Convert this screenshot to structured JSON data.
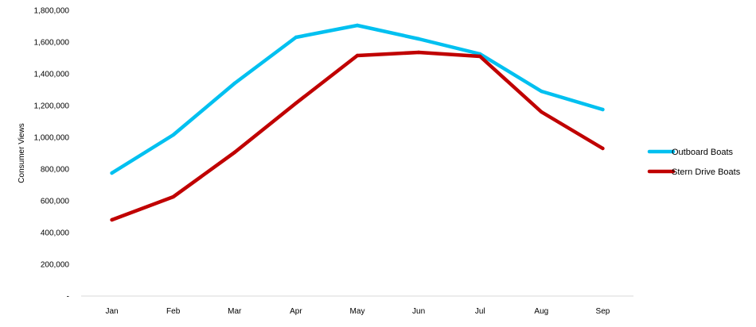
{
  "chart_data": {
    "type": "line",
    "title": "",
    "xlabel": "",
    "ylabel": "Consumer Views",
    "categories": [
      "Jan",
      "Feb",
      "Mar",
      "Apr",
      "May",
      "Jun",
      "Jul",
      "Aug",
      "Sep"
    ],
    "series": [
      {
        "name": "Outboard Boats",
        "color": "#00c0f0",
        "values": [
          775000,
          1015000,
          1340000,
          1630000,
          1705000,
          1620000,
          1525000,
          1290000,
          1175000
        ]
      },
      {
        "name": "Stern Drive Boats",
        "color": "#c00000",
        "values": [
          480000,
          625000,
          905000,
          1215000,
          1515000,
          1535000,
          1510000,
          1160000,
          930000
        ]
      }
    ],
    "ylim": [
      0,
      1800000
    ],
    "yticks": [
      0,
      200000,
      400000,
      600000,
      800000,
      1000000,
      1200000,
      1400000,
      1600000,
      1800000
    ],
    "ytick_labels": [
      "-",
      "200,000",
      "400,000",
      "600,000",
      "800,000",
      "1,000,000",
      "1,200,000",
      "1,400,000",
      "1,600,000",
      "1,800,000"
    ],
    "grid": false,
    "legend_position": "right"
  }
}
